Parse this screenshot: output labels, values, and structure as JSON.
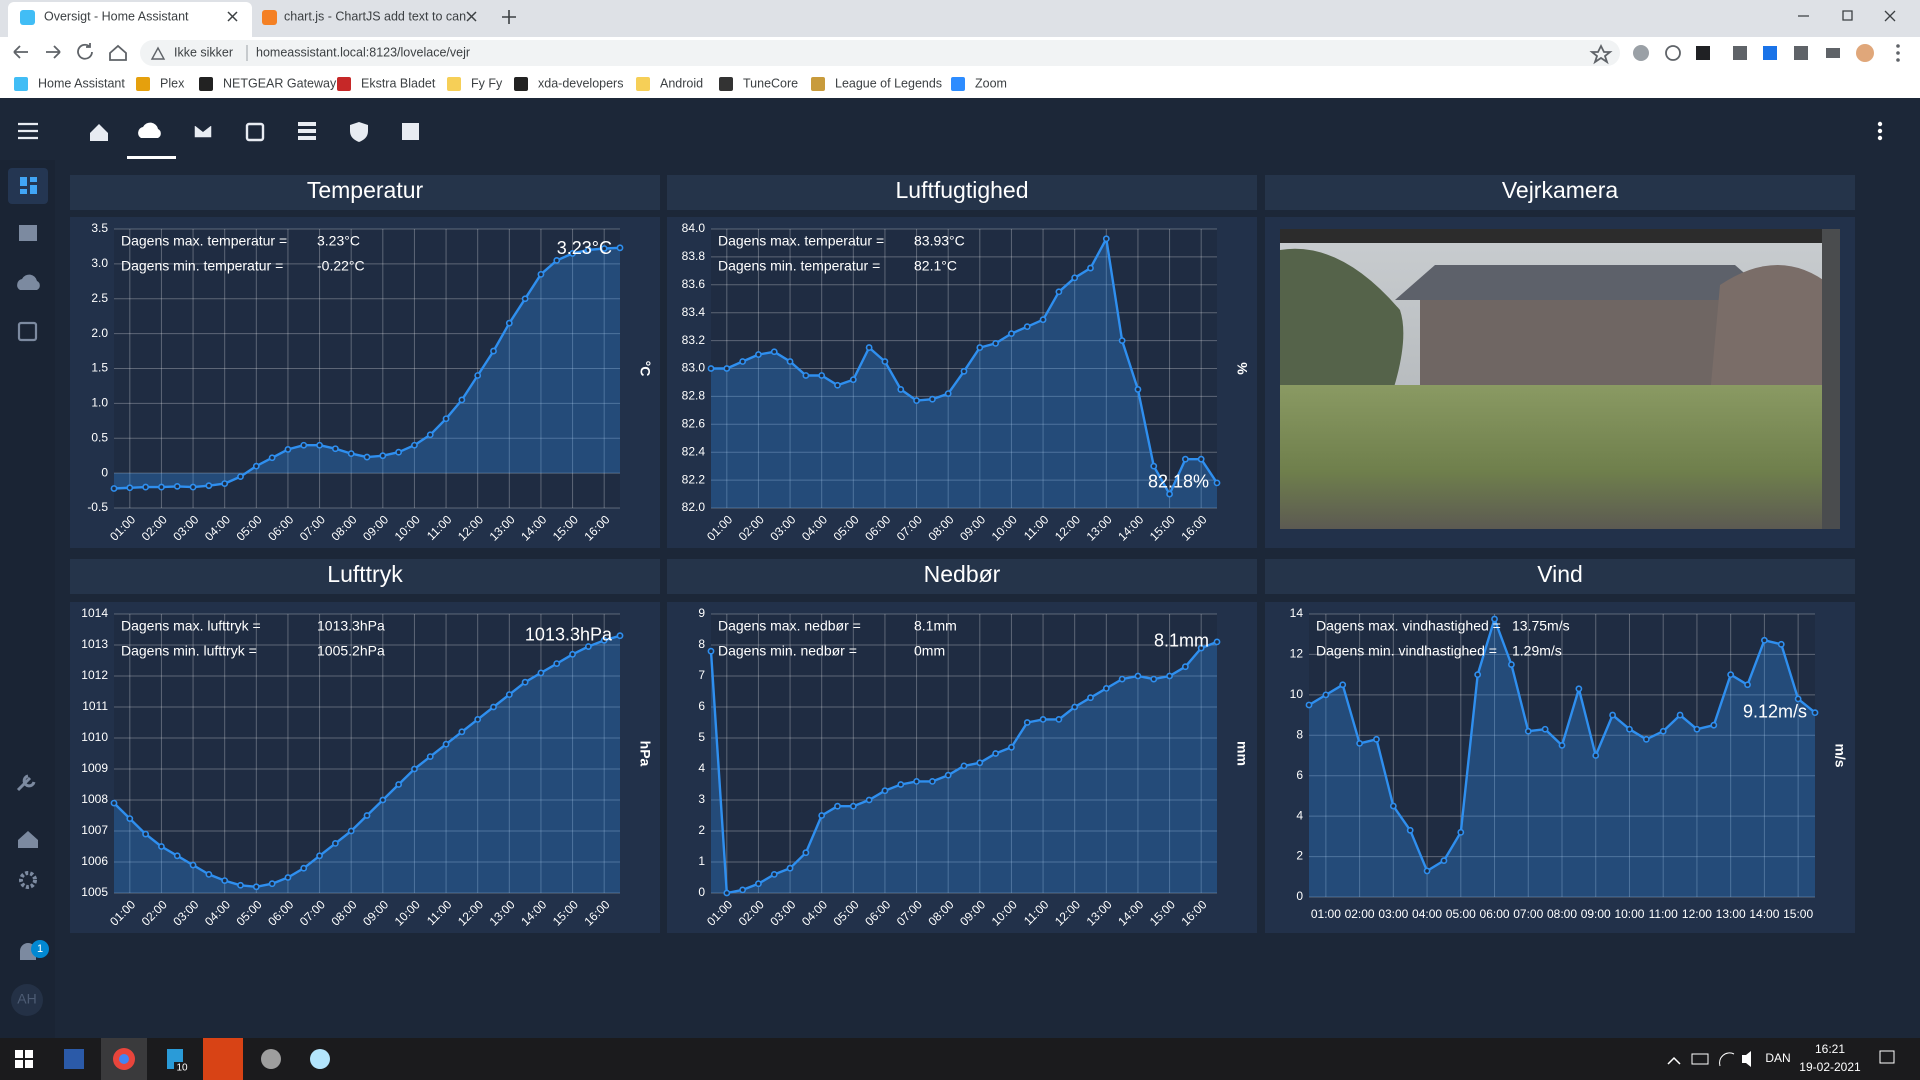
{
  "browser": {
    "tabs": [
      "Oversigt - Home Assistant",
      "chart.js - ChartJS add text to can"
    ],
    "security": "Ikke sikker",
    "url": "homeassistant.local:8123/lovelace/vejr",
    "bookmarks": [
      "Home Assistant",
      "Plex",
      "NETGEAR Gateway",
      "Ekstra Bladet",
      "Fy Fy",
      "xda-developers",
      "Android",
      "TuneCore",
      "League of Legends",
      "Zoom"
    ]
  },
  "camera": {
    "title": "Vejrkamera"
  },
  "sidebar": {
    "notifications": 1,
    "avatar": "AH"
  },
  "taskbar": {
    "badge": 10,
    "language": "DAN",
    "time": "16:21",
    "date": "19-02-2021"
  },
  "chart_data": [
    {
      "type": "line",
      "title": "Temperatur",
      "ylabel": "°C",
      "color": "#2f8fef",
      "grid": true,
      "fill": true,
      "rotate_x_labels": true,
      "categories": [
        null,
        "01:00",
        null,
        "02:00",
        null,
        "03:00",
        null,
        "04:00",
        null,
        "05:00",
        null,
        "06:00",
        null,
        "07:00",
        null,
        "08:00",
        null,
        "09:00",
        null,
        "10:00",
        null,
        "11:00",
        null,
        "12:00",
        null,
        "13:00",
        null,
        "14:00",
        null,
        "15:00",
        null,
        "16:00",
        null
      ],
      "values": [
        -0.22,
        -0.21,
        -0.2,
        -0.2,
        -0.19,
        -0.2,
        -0.18,
        -0.15,
        -0.05,
        0.1,
        0.22,
        0.34,
        0.4,
        0.4,
        0.35,
        0.28,
        0.23,
        0.25,
        0.3,
        0.4,
        0.55,
        0.78,
        1.05,
        1.4,
        1.75,
        2.15,
        2.5,
        2.85,
        3.05,
        3.15,
        3.2,
        3.22,
        3.23
      ],
      "ylim": [
        -0.5,
        3.5
      ],
      "yticks": [
        -0.5,
        0,
        0.5,
        {
          "value": 1,
          "label": "1.0"
        },
        1.5,
        {
          "value": 2,
          "label": "2.0"
        },
        2.5,
        {
          "value": 3,
          "label": "3.0"
        },
        3.5
      ],
      "stats": [
        [
          "Dagens max. temperatur =",
          "3.23°C"
        ],
        [
          "Dagens min. temperatur =",
          "-0.22°C"
        ]
      ],
      "current_label": "3.23°C"
    },
    {
      "type": "line",
      "title": "Luftfugtighed",
      "ylabel": "%",
      "color": "#2f8fef",
      "grid": true,
      "fill": true,
      "rotate_x_labels": true,
      "categories": [
        null,
        "01:00",
        null,
        "02:00",
        null,
        "03:00",
        null,
        "04:00",
        null,
        "05:00",
        null,
        "06:00",
        null,
        "07:00",
        null,
        "08:00",
        null,
        "09:00",
        null,
        "10:00",
        null,
        "11:00",
        null,
        "12:00",
        null,
        "13:00",
        null,
        "14:00",
        null,
        "15:00",
        null,
        "16:00",
        null
      ],
      "values": [
        83.0,
        83.0,
        83.05,
        83.1,
        83.12,
        83.05,
        82.95,
        82.95,
        82.88,
        82.92,
        83.15,
        83.05,
        82.85,
        82.77,
        82.78,
        82.82,
        82.98,
        83.15,
        83.18,
        83.25,
        83.3,
        83.35,
        83.55,
        83.65,
        83.72,
        83.93,
        83.2,
        82.85,
        82.3,
        82.1,
        82.35,
        82.35,
        82.18
      ],
      "ylim": [
        82.0,
        84.0
      ],
      "yticks": [
        {
          "value": 82,
          "label": "82.0"
        },
        82.2,
        82.4,
        82.6,
        82.8,
        {
          "value": 83,
          "label": "83.0"
        },
        83.2,
        83.4,
        83.6,
        83.8,
        {
          "value": 84,
          "label": "84.0"
        }
      ],
      "stats": [
        [
          "Dagens max. temperatur =",
          "83.93°C"
        ],
        [
          "Dagens min. temperatur =",
          "82.1°C"
        ]
      ],
      "current_label": "82.18%"
    },
    {
      "type": "line",
      "title": "Lufttryk",
      "ylabel": "hPa",
      "color": "#2f8fef",
      "grid": true,
      "fill": true,
      "rotate_x_labels": true,
      "categories": [
        null,
        "01:00",
        null,
        "02:00",
        null,
        "03:00",
        null,
        "04:00",
        null,
        "05:00",
        null,
        "06:00",
        null,
        "07:00",
        null,
        "08:00",
        null,
        "09:00",
        null,
        "10:00",
        null,
        "11:00",
        null,
        "12:00",
        null,
        "13:00",
        null,
        "14:00",
        null,
        "15:00",
        null,
        "16:00",
        null
      ],
      "values": [
        1007.9,
        1007.4,
        1006.9,
        1006.5,
        1006.2,
        1005.9,
        1005.6,
        1005.4,
        1005.25,
        1005.2,
        1005.3,
        1005.5,
        1005.8,
        1006.2,
        1006.6,
        1007.0,
        1007.5,
        1008.0,
        1008.5,
        1009.0,
        1009.4,
        1009.8,
        1010.2,
        1010.6,
        1011.0,
        1011.4,
        1011.8,
        1012.1,
        1012.4,
        1012.7,
        1012.95,
        1013.15,
        1013.3
      ],
      "ylim": [
        1005,
        1014
      ],
      "yticks": [
        1005,
        1006,
        1007,
        1008,
        1009,
        1010,
        1011,
        1012,
        1013,
        1014
      ],
      "stats": [
        [
          "Dagens max. lufttryk =",
          "1013.3hPa"
        ],
        [
          "Dagens min. lufttryk =",
          "1005.2hPa"
        ]
      ],
      "current_label": "1013.3hPa"
    },
    {
      "type": "line",
      "title": "Nedbør",
      "ylabel": "mm",
      "color": "#2f8fef",
      "grid": true,
      "fill": true,
      "rotate_x_labels": true,
      "categories": [
        null,
        "01:00",
        null,
        "02:00",
        null,
        "03:00",
        null,
        "04:00",
        null,
        "05:00",
        null,
        "06:00",
        null,
        "07:00",
        null,
        "08:00",
        null,
        "09:00",
        null,
        "10:00",
        null,
        "11:00",
        null,
        "12:00",
        null,
        "13:00",
        null,
        "14:00",
        null,
        "15:00",
        null,
        "16:00",
        null
      ],
      "values": [
        7.8,
        0,
        0.1,
        0.3,
        0.6,
        0.8,
        1.3,
        2.5,
        2.8,
        2.8,
        3.0,
        3.3,
        3.5,
        3.6,
        3.6,
        3.8,
        4.1,
        4.2,
        4.5,
        4.7,
        5.5,
        5.6,
        5.6,
        6.0,
        6.3,
        6.6,
        6.9,
        7.0,
        6.9,
        7.0,
        7.3,
        7.9,
        8.1
      ],
      "ylim": [
        0,
        9
      ],
      "yticks": [
        0,
        1,
        2,
        3,
        4,
        5,
        6,
        7,
        8,
        9
      ],
      "stats": [
        [
          "Dagens max. nedbør =",
          "8.1mm"
        ],
        [
          "Dagens min. nedbør =",
          "0mm"
        ]
      ],
      "current_label": "8.1mm"
    },
    {
      "type": "line",
      "title": "Vind",
      "ylabel": "m/s",
      "color": "#2f8fef",
      "grid": true,
      "fill": true,
      "rotate_x_labels": false,
      "categories": [
        null,
        "01:00",
        null,
        "02:00",
        null,
        "03:00",
        null,
        "04:00",
        null,
        "05:00",
        null,
        "06:00",
        null,
        "07:00",
        null,
        "08:00",
        null,
        "09:00",
        null,
        "10:00",
        null,
        "11:00",
        null,
        "12:00",
        null,
        "13:00",
        null,
        "14:00",
        null,
        "15:00",
        null
      ],
      "values": [
        9.5,
        10.0,
        10.5,
        7.6,
        7.8,
        4.5,
        3.3,
        1.29,
        1.8,
        3.2,
        11.0,
        13.75,
        11.5,
        8.2,
        8.3,
        7.5,
        10.3,
        7.0,
        9.0,
        8.3,
        7.8,
        8.2,
        9.0,
        8.3,
        8.5,
        11.0,
        10.5,
        12.7,
        12.5,
        9.8,
        9.12
      ],
      "ylim": [
        0,
        14
      ],
      "yticks": [
        0,
        2,
        4,
        6,
        8,
        10,
        12,
        14
      ],
      "stats": [
        [
          "Dagens max. vindhastighed =",
          "13.75m/s"
        ],
        [
          "Dagens min. vindhastighed =",
          "1.29m/s"
        ]
      ],
      "current_label": "9.12m/s"
    }
  ]
}
